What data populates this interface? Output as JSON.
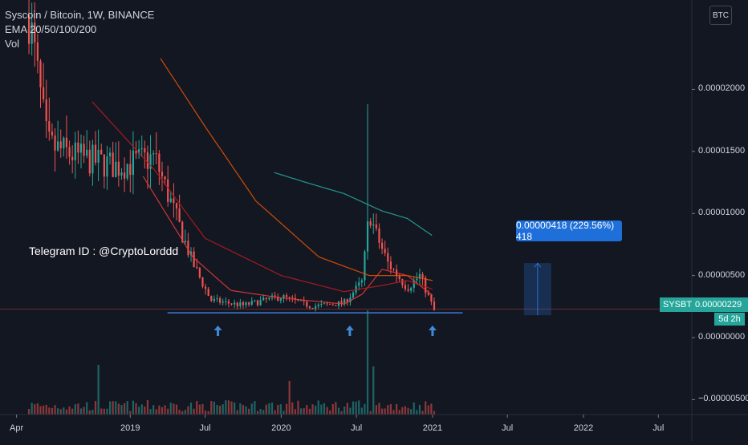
{
  "legend": {
    "symbol_line": "Syscoin / Bitcoin, 1W, BINANCE",
    "ema_line": "EMA 20/50/100/200",
    "vol_line": "Vol"
  },
  "currency_button": "BTC",
  "annotation_text": "Telegram ID : @CryptoLorddd",
  "measure_label": "0.00000418 (229.56%) 418",
  "price_label": {
    "symbol": "SYSBTC",
    "value": "0.00000229",
    "countdown": "5d 2h"
  },
  "colors": {
    "background": "#131722",
    "up": "#26a69a",
    "down": "#ef5350",
    "ema20": "#e53935",
    "ema50": "#b71c1c",
    "ema100": "#e65100",
    "ema200": "#26a69a",
    "support_line": "#3d7dd8",
    "measure": "#2a6fd0",
    "arrows": "#3d8bd8"
  },
  "chart_data": {
    "type": "candlestick",
    "title": "Syscoin / Bitcoin, 1W, BINANCE",
    "indicators": [
      "EMA 20/50/100/200",
      "Vol"
    ],
    "y_axis": {
      "ticks": [
        2e-05,
        1.5e-05,
        1e-05,
        5e-06,
        0.0,
        -5e-06
      ],
      "tick_labels": [
        "0.00002000",
        "0.00001500",
        "0.00001000",
        "0.00000500",
        "0.00000000",
        "−0.00000500"
      ],
      "range": [
        -6.2e-06,
        2.72e-05
      ]
    },
    "x_axis": {
      "tick_labels": [
        "Apr",
        "2019",
        "Jul",
        "2020",
        "Jul",
        "2021",
        "Jul",
        "2022",
        "Jul"
      ],
      "tick_dates": [
        "2018-04-01",
        "2019-01-01",
        "2019-07-01",
        "2020-01-01",
        "2020-07-01",
        "2021-01-01",
        "2021-07-01",
        "2022-01-01",
        "2022-07-01"
      ],
      "range": [
        "2018-02-20",
        "2022-09-20"
      ]
    },
    "price_series": {
      "name": "SYSBTC",
      "date_points": [
        "2018-05-01",
        "2018-06-15",
        "2018-09-01",
        "2018-12-01",
        "2019-03-01",
        "2019-06-01",
        "2019-07-15",
        "2019-10-01",
        "2020-01-01",
        "2020-03-15",
        "2020-06-01",
        "2020-07-15",
        "2020-08-01",
        "2020-08-15",
        "2020-09-15",
        "2020-11-01",
        "2020-12-01",
        "2021-01-05"
      ],
      "close": [
        2.6e-05,
        1.55e-05,
        1.45e-05,
        1.38e-05,
        1.45e-05,
        6e-06,
        3e-06,
        2.6e-06,
        3.3e-06,
        2.5e-06,
        2.8e-06,
        4.5e-06,
        1.02e-05,
        8.5e-06,
        6e-06,
        4e-06,
        5e-06,
        2.2e-06
      ]
    },
    "ema_series": [
      {
        "name": "EMA 20",
        "date_points": [
          "2019-02-01",
          "2019-06-01",
          "2019-09-01",
          "2020-01-01",
          "2020-06-01",
          "2020-07-15",
          "2020-09-01",
          "2020-11-01",
          "2021-01-01"
        ],
        "values": [
          1.3e-05,
          6.5e-06,
          3.8e-06,
          3.2e-06,
          2.7e-06,
          3.5e-06,
          5.5e-06,
          5e-06,
          3.4e-06
        ]
      },
      {
        "name": "EMA 50",
        "date_points": [
          "2018-10-01",
          "2019-03-01",
          "2019-07-01",
          "2020-01-01",
          "2020-06-01",
          "2020-09-01",
          "2020-11-01",
          "2021-01-01"
        ],
        "values": [
          1.9e-05,
          1.35e-05,
          8e-06,
          5e-06,
          3.7e-06,
          4.2e-06,
          4.6e-06,
          3.9e-06
        ]
      },
      {
        "name": "EMA 100",
        "date_points": [
          "2019-03-15",
          "2019-07-01",
          "2019-11-01",
          "2020-04-01",
          "2020-08-01",
          "2020-11-01",
          "2021-01-01"
        ],
        "values": [
          2.25e-05,
          1.7e-05,
          1.1e-05,
          6.5e-06,
          5e-06,
          5e-06,
          4.6e-06
        ]
      },
      {
        "name": "EMA 200",
        "date_points": [
          "2019-12-15",
          "2020-03-01",
          "2020-06-01",
          "2020-09-01",
          "2020-11-01",
          "2021-01-01"
        ],
        "values": [
          1.33e-05,
          1.25e-05,
          1.16e-05,
          1.02e-05,
          9.6e-06,
          8.2e-06
        ]
      }
    ],
    "support_level": 2e-06,
    "last_price": 2.29e-06,
    "measure": {
      "from_date": "2021-08-10",
      "to_date": "2021-10-15",
      "from_value": 1.8e-06,
      "to_value": 6e-06,
      "change": "0.00000418",
      "percent": "229.56%",
      "ticks": "418"
    },
    "grid": false
  }
}
